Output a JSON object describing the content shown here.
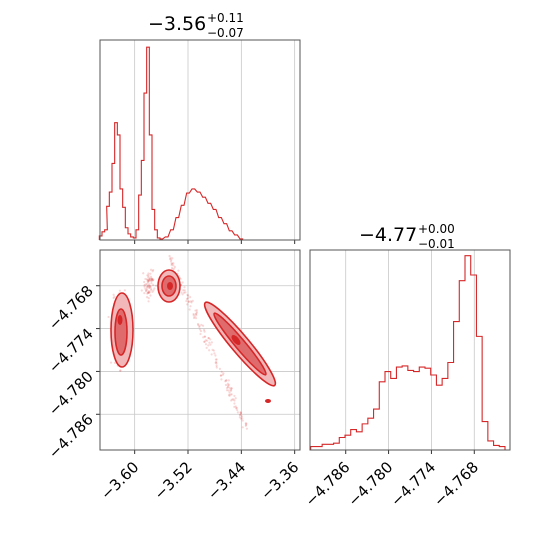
{
  "colors": {
    "series": "#d62728",
    "grid": "#c8c8c8",
    "frame": "#555555"
  },
  "chart_data": [
    {
      "type": "histogram",
      "panel": "marginal-x",
      "title": {
        "median": "−3.56",
        "upper": "+0.11",
        "lower": "−0.07"
      },
      "xlim": [
        -3.652,
        -3.352
      ],
      "grid": true,
      "bins": [
        [
          -3.651,
          0.4
        ],
        [
          -3.647,
          0.8
        ],
        [
          -3.643,
          1.0
        ],
        [
          -3.64,
          3.3
        ],
        [
          -3.636,
          4.7
        ],
        [
          -3.632,
          7.5
        ],
        [
          -3.628,
          11.5
        ],
        [
          -3.624,
          10.3
        ],
        [
          -3.62,
          5.0
        ],
        [
          -3.616,
          3.2
        ],
        [
          -3.612,
          1.2
        ],
        [
          -3.608,
          0.6
        ],
        [
          -3.604,
          0.3
        ],
        [
          -3.6,
          0.2
        ],
        [
          -3.596,
          1.0
        ],
        [
          -3.592,
          4.4
        ],
        [
          -3.588,
          7.8
        ],
        [
          -3.584,
          14.4
        ],
        [
          -3.58,
          18.9
        ],
        [
          -3.576,
          10.3
        ],
        [
          -3.572,
          3.0
        ],
        [
          -3.568,
          1.0
        ],
        [
          -3.564,
          0.2
        ],
        [
          -3.56,
          0.1
        ],
        [
          -3.552,
          0.3
        ],
        [
          -3.544,
          1.0
        ],
        [
          -3.536,
          2.2
        ],
        [
          -3.528,
          3.4
        ],
        [
          -3.52,
          4.6
        ],
        [
          -3.512,
          5.0
        ],
        [
          -3.504,
          4.7
        ],
        [
          -3.496,
          4.2
        ],
        [
          -3.488,
          3.6
        ],
        [
          -3.48,
          3.0
        ],
        [
          -3.472,
          2.2
        ],
        [
          -3.464,
          1.6
        ],
        [
          -3.456,
          0.9
        ],
        [
          -3.448,
          0.5
        ],
        [
          -3.44,
          0.1
        ]
      ],
      "bins_note_units": "x in data units; height in relative counts (top of panel = 19.6)",
      "ymax": 19.6,
      "ticks": []
    },
    {
      "type": "scatter_contour",
      "panel": "joint",
      "xlim": [
        -3.652,
        -3.352
      ],
      "ylim": [
        -4.791,
        -4.763
      ],
      "grid": true,
      "x_ticks": [
        "−3.60",
        "−3.52",
        "−3.44",
        "−3.36"
      ],
      "x_tick_values": [
        -3.6,
        -3.52,
        -3.44,
        -3.36
      ],
      "y_ticks": [
        "−4.768",
        "−4.774",
        "−4.780",
        "−4.786"
      ],
      "y_tick_values": [
        -4.768,
        -4.774,
        -4.78,
        -4.786
      ],
      "clusters": [
        {
          "center": [
            -3.623,
            -4.774
          ],
          "spread": [
            0.008,
            0.0038
          ],
          "n": 90
        },
        {
          "center": [
            -3.578,
            -4.7677
          ],
          "spread": [
            0.006,
            0.0012
          ],
          "n": 70
        },
        {
          "center": [
            -3.49,
            -4.776
          ],
          "spread": [
            0.045,
            0.0045
          ],
          "n": 160,
          "tilt": true
        }
      ]
    },
    {
      "type": "histogram",
      "panel": "marginal-y",
      "title": {
        "median": "−4.77",
        "upper": "+0.00",
        "lower": "−0.01"
      },
      "xlim": [
        -4.791,
        -4.763
      ],
      "grid": true,
      "x_ticks": [
        "−4.786",
        "−4.780",
        "−4.774",
        "−4.768"
      ],
      "x_tick_values": [
        -4.786,
        -4.78,
        -4.774,
        -4.768
      ],
      "bins": [
        [
          -4.7905,
          0.3
        ],
        [
          -4.7897,
          0.3
        ],
        [
          -4.7889,
          0.5
        ],
        [
          -4.7881,
          0.5
        ],
        [
          -4.7873,
          0.6
        ],
        [
          -4.7865,
          1.1
        ],
        [
          -4.7857,
          1.3
        ],
        [
          -4.7849,
          1.8
        ],
        [
          -4.7841,
          1.6
        ],
        [
          -4.7833,
          2.3
        ],
        [
          -4.7825,
          2.8
        ],
        [
          -4.7817,
          3.6
        ],
        [
          -4.7809,
          6.0
        ],
        [
          -4.7801,
          6.9
        ],
        [
          -4.7793,
          6.3
        ],
        [
          -4.7785,
          7.3
        ],
        [
          -4.7777,
          7.4
        ],
        [
          -4.7769,
          7.0
        ],
        [
          -4.7761,
          6.9
        ],
        [
          -4.7753,
          7.3
        ],
        [
          -4.7745,
          7.2
        ],
        [
          -4.7737,
          6.6
        ],
        [
          -4.7729,
          5.7
        ],
        [
          -4.7721,
          6.3
        ],
        [
          -4.7713,
          7.7
        ],
        [
          -4.7705,
          11.3
        ],
        [
          -4.7697,
          14.9
        ],
        [
          -4.7689,
          17.1
        ],
        [
          -4.7681,
          15.4
        ],
        [
          -4.7673,
          10.0
        ],
        [
          -4.7665,
          2.5
        ],
        [
          -4.7657,
          0.8
        ],
        [
          -4.7649,
          0.4
        ],
        [
          -4.7641,
          0.3
        ]
      ],
      "ymax": 17.6
    }
  ]
}
